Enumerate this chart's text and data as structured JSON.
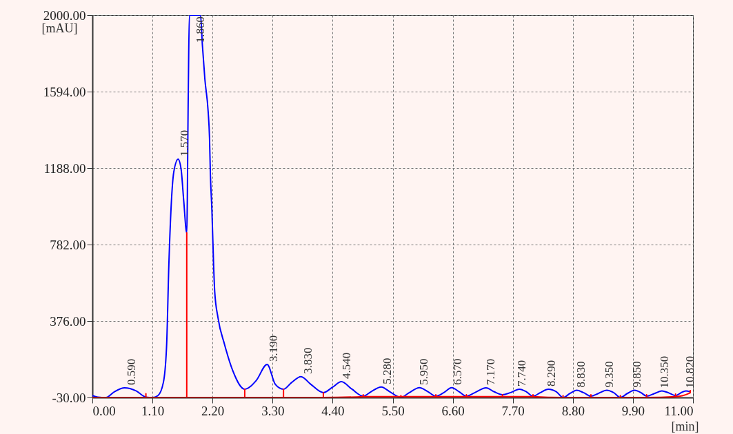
{
  "chart_data": {
    "type": "line",
    "xlabel": "[min]",
    "ylabel": "[mAU]",
    "xlim": [
      0,
      11
    ],
    "ylim": [
      -30,
      2000
    ],
    "xticks": [
      {
        "value": 0,
        "label": "0.00"
      },
      {
        "value": 1.1,
        "label": "1.10"
      },
      {
        "value": 2.2,
        "label": "2.20"
      },
      {
        "value": 3.3,
        "label": "3.30"
      },
      {
        "value": 4.4,
        "label": "4.40"
      },
      {
        "value": 5.5,
        "label": "5.50"
      },
      {
        "value": 6.6,
        "label": "6.60"
      },
      {
        "value": 7.7,
        "label": "7.70"
      },
      {
        "value": 8.8,
        "label": "8.80"
      },
      {
        "value": 9.9,
        "label": "9.90"
      },
      {
        "value": 11,
        "label": "11.00"
      }
    ],
    "yticks": [
      {
        "value": -30,
        "label": "-30.00"
      },
      {
        "value": 376,
        "label": "376.00"
      },
      {
        "value": 782,
        "label": "782.00"
      },
      {
        "value": 1188,
        "label": "1188.00"
      },
      {
        "value": 1594,
        "label": "1594.00"
      },
      {
        "value": 2000,
        "label": "2000.00"
      }
    ],
    "grid": true,
    "line_style": "solid",
    "series": [
      {
        "color": "#0000ff",
        "x": [
          0,
          0.1,
          0.25,
          0.4,
          0.59,
          0.8,
          0.98,
          1.1,
          1.2,
          1.3,
          1.36,
          1.4,
          1.49,
          1.57,
          1.625,
          1.673,
          1.728,
          1.756,
          1.776,
          1.98,
          2.014,
          2.06,
          2.12,
          2.145,
          2.16,
          2.19,
          2.22,
          2.24,
          2.3,
          2.42,
          2.57,
          2.79,
          3.0,
          3.2,
          3.35,
          3.5,
          3.65,
          3.82,
          4.0,
          4.23,
          4.4,
          4.56,
          4.75,
          4.96,
          5.1,
          5.29,
          5.45,
          5.65,
          5.8,
          5.99,
          6.15,
          6.29,
          6.43,
          6.58,
          6.72,
          6.85,
          7.0,
          7.21,
          7.36,
          7.51,
          7.65,
          7.82,
          7.95,
          8.07,
          8.2,
          8.35,
          8.5,
          8.62,
          8.75,
          8.87,
          9.0,
          9.13,
          9.27,
          9.42,
          9.55,
          9.67,
          9.8,
          9.93,
          10.05,
          10.15,
          10.3,
          10.43,
          10.55,
          10.68,
          10.78,
          10.87,
          10.95
        ],
        "values": [
          -20,
          -28,
          -30,
          0,
          21,
          5,
          -28,
          -30,
          -20,
          50,
          252,
          672,
          1166,
          1236,
          1181,
          1013,
          844,
          1587,
          2000,
          2000,
          1843,
          1660,
          1488,
          1349,
          1166,
          954,
          672,
          533,
          394,
          252,
          113,
          14,
          60,
          146,
          40,
          14,
          50,
          81,
          40,
          -4,
          25,
          54,
          15,
          -23,
          0,
          26,
          0,
          -30,
          -5,
          22,
          0,
          -23,
          -5,
          22,
          0,
          -23,
          -5,
          21,
          0,
          -15,
          -5,
          14,
          0,
          -23,
          -5,
          14,
          0,
          -30,
          -8,
          8,
          -5,
          -23,
          -8,
          8,
          -5,
          -30,
          -8,
          8,
          -5,
          -23,
          -8,
          5,
          -5,
          -20,
          -5,
          5,
          0
        ]
      },
      {
        "color": "#ff0000",
        "x": [
          0,
          0.98,
          0.98,
          0.98,
          1.728,
          1.728,
          1.728,
          2.79,
          2.79,
          2.79,
          3.5,
          3.5,
          3.5,
          4.23,
          4.23,
          4.23,
          4.96,
          4.96,
          4.96,
          5.65,
          5.65,
          5.65,
          6.29,
          6.29,
          6.29,
          6.85,
          6.85,
          6.85,
          7.51,
          7.51,
          7.51,
          8.07,
          8.07,
          8.07,
          8.62,
          8.62,
          8.62,
          9.13,
          9.13,
          9.13,
          9.67,
          9.67,
          9.67,
          10.15,
          10.15,
          10.15,
          10.68,
          10.68,
          10.68,
          10.95,
          10.95
        ],
        "values": [
          -30,
          -30,
          -10,
          -30,
          -30,
          844,
          -30,
          -30,
          14,
          -30,
          -30,
          14,
          -30,
          -30,
          -4,
          -30,
          -25,
          -15,
          -25,
          -25,
          -20,
          -25,
          -25,
          -15,
          -25,
          -25,
          -15,
          -25,
          -25,
          -15,
          -25,
          -25,
          -15,
          -25,
          -30,
          -20,
          -30,
          -30,
          -15,
          -30,
          -30,
          -20,
          -30,
          -30,
          -15,
          -30,
          -25,
          -12,
          -25,
          -5,
          10
        ]
      }
    ],
    "annotations": [
      {
        "text": "0.590",
        "x": 0.59,
        "y": 21
      },
      {
        "text": "1.570",
        "x": 1.57,
        "y": 1236
      },
      {
        "text": "1.860",
        "x": 1.86,
        "y": 2000
      },
      {
        "text": "3.190",
        "x": 3.19,
        "y": 146
      },
      {
        "text": "3.830",
        "x": 3.83,
        "y": 81
      },
      {
        "text": "4.540",
        "x": 4.54,
        "y": 54
      },
      {
        "text": "5.280",
        "x": 5.28,
        "y": 26
      },
      {
        "text": "5.950",
        "x": 5.95,
        "y": 22
      },
      {
        "text": "6.570",
        "x": 6.57,
        "y": 22
      },
      {
        "text": "7.170",
        "x": 7.17,
        "y": 21
      },
      {
        "text": "7.740",
        "x": 7.74,
        "y": 14
      },
      {
        "text": "8.290",
        "x": 8.29,
        "y": 14
      },
      {
        "text": "8.830",
        "x": 8.83,
        "y": 8
      },
      {
        "text": "9.350",
        "x": 9.35,
        "y": 8
      },
      {
        "text": "9.850",
        "x": 9.85,
        "y": 8
      },
      {
        "text": "10.350",
        "x": 10.35,
        "y": 5
      },
      {
        "text": "10.820",
        "x": 10.82,
        "y": 5
      }
    ]
  }
}
